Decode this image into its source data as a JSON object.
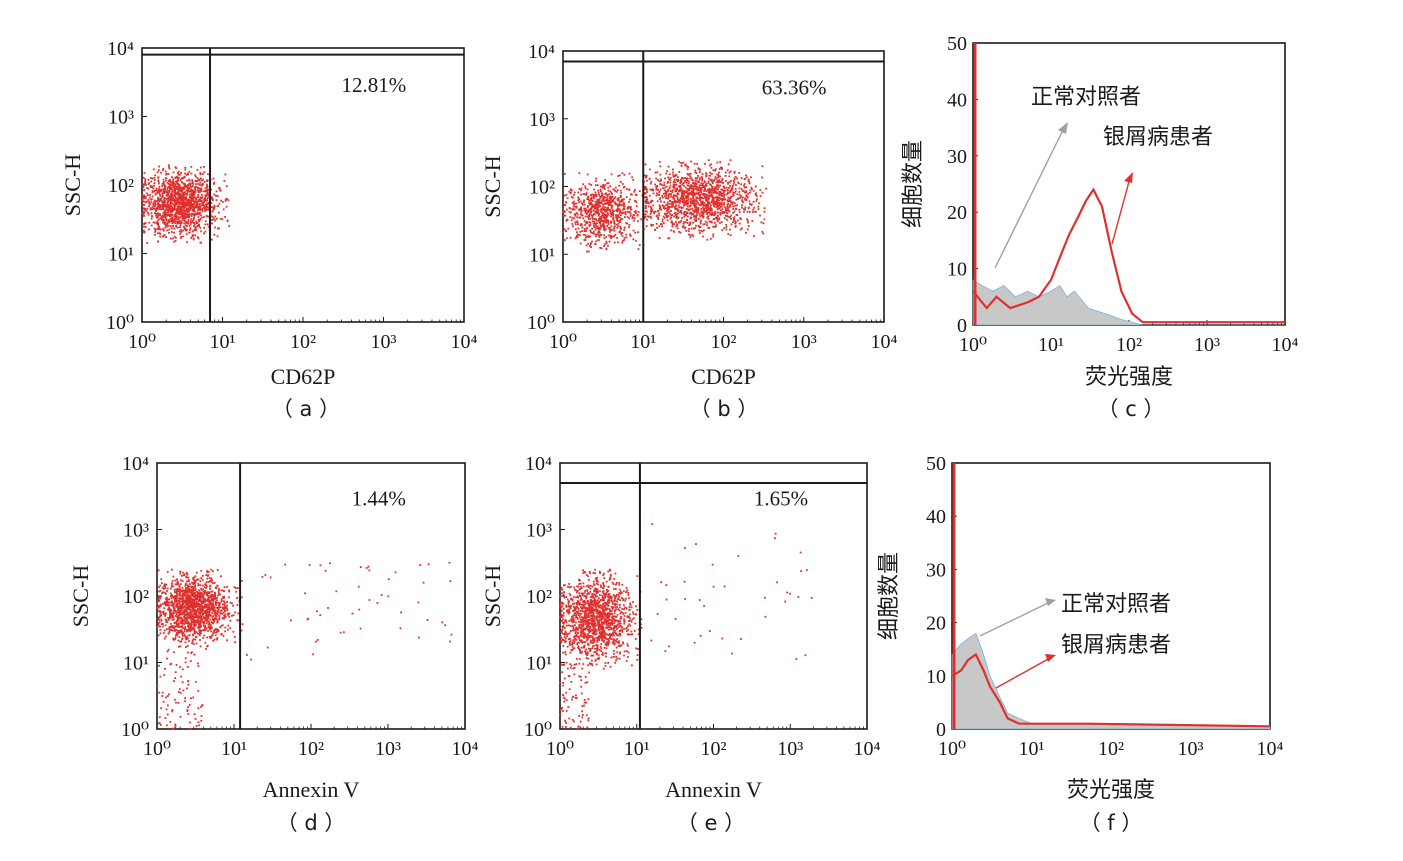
{
  "colors": {
    "scatter": "#e0302e",
    "treated": "#e0302e",
    "control": "#c8c8c8",
    "control_edge": "#5aa6d6",
    "axis": "#1a1a1a"
  },
  "chart_data": [
    {
      "type": "scatter",
      "panel_label": "（ a ）",
      "xlabel": "CD62P",
      "ylabel": "SSC-H",
      "x_scale": "log",
      "y_scale": "log",
      "xlim": [
        1,
        10000
      ],
      "ylim": [
        1,
        10000
      ],
      "tick_labels": [
        "10⁰",
        "10¹",
        "10²",
        "10³",
        "10⁴"
      ],
      "gate_x": 7,
      "gate_y": 8000,
      "percent_label": "12.81%",
      "clusters": [
        {
          "x_log_range": [
            0,
            0.95
          ],
          "y_log_range": [
            1.25,
            2.2
          ],
          "count": 1400
        }
      ]
    },
    {
      "type": "scatter",
      "panel_label": "（ b ）",
      "xlabel": "CD62P",
      "ylabel": "SSC-H",
      "x_scale": "log",
      "y_scale": "log",
      "xlim": [
        1,
        10000
      ],
      "ylim": [
        1,
        10000
      ],
      "tick_labels": [
        "10⁰",
        "10¹",
        "10²",
        "10³",
        "10⁴"
      ],
      "gate_x": 10,
      "gate_y": 7000,
      "percent_label": "63.36%",
      "clusters": [
        {
          "x_log_range": [
            0,
            1.0
          ],
          "y_log_range": [
            1.1,
            2.1
          ],
          "count": 800
        },
        {
          "x_log_range": [
            1.0,
            2.4
          ],
          "y_log_range": [
            1.3,
            2.3
          ],
          "count": 1400
        }
      ]
    },
    {
      "type": "area",
      "panel_label": "（ c ）",
      "xlabel": "荧光强度",
      "ylabel": "细胞数量",
      "x_scale": "log",
      "xlim": [
        1,
        10000
      ],
      "ylim": [
        0,
        50
      ],
      "y_ticks": [
        0,
        10,
        20,
        30,
        40,
        50
      ],
      "tick_labels": [
        "10⁰",
        "10¹",
        "10²",
        "10³",
        "10⁴"
      ],
      "series": [
        {
          "name": "正常对照者",
          "x": [
            1,
            1.3,
            1.8,
            2.5,
            3.5,
            5,
            7,
            10,
            13,
            16,
            20,
            30,
            50,
            80,
            150,
            10000
          ],
          "y": [
            8,
            7,
            6,
            7,
            5,
            6,
            5,
            6,
            7,
            5,
            6,
            3,
            2,
            1,
            0,
            0
          ]
        },
        {
          "name": "银屑病患者",
          "x": [
            1,
            1.5,
            2,
            3,
            5,
            7,
            10,
            13,
            17,
            22,
            28,
            35,
            45,
            60,
            80,
            110,
            150,
            200,
            10000
          ],
          "y": [
            6,
            3,
            5,
            3,
            4,
            5,
            8,
            12,
            16,
            19,
            22,
            24,
            21,
            13,
            6,
            2,
            0.5,
            0.5,
            0.5
          ]
        }
      ]
    },
    {
      "type": "scatter",
      "panel_label": "（ d ）",
      "xlabel": "Annexin V",
      "ylabel": "SSC-H",
      "x_scale": "log",
      "y_scale": "log",
      "xlim": [
        1,
        10000
      ],
      "ylim": [
        1,
        10000
      ],
      "tick_labels": [
        "10⁰",
        "10¹",
        "10²",
        "10³",
        "10⁴"
      ],
      "gate_x": 12,
      "percent_label": "1.44%",
      "clusters": [
        {
          "x_log_range": [
            0,
            0.95
          ],
          "y_log_range": [
            1.3,
            2.3
          ],
          "count": 1500
        },
        {
          "x_log_range": [
            0,
            0.6
          ],
          "y_log_range": [
            0,
            1.2
          ],
          "count": 90
        },
        {
          "x_log_range": [
            1.1,
            3.9
          ],
          "y_log_range": [
            1.0,
            2.6
          ],
          "count": 55
        }
      ]
    },
    {
      "type": "scatter",
      "panel_label": "（ e ）",
      "xlabel": "Annexin V",
      "ylabel": "SSC-H",
      "x_scale": "log",
      "y_scale": "log",
      "xlim": [
        1,
        10000
      ],
      "ylim": [
        1,
        10000
      ],
      "tick_labels": [
        "10⁰",
        "10¹",
        "10²",
        "10³",
        "10⁴"
      ],
      "gate_x": 11,
      "gate_y": 5000,
      "percent_label": "1.65%",
      "clusters": [
        {
          "x_log_range": [
            0,
            0.95
          ],
          "y_log_range": [
            1.0,
            2.3
          ],
          "count": 1400
        },
        {
          "x_log_range": [
            0,
            0.4
          ],
          "y_log_range": [
            0,
            1.0
          ],
          "count": 80
        },
        {
          "x_log_range": [
            1.0,
            3.3
          ],
          "y_log_range": [
            1.0,
            3.1
          ],
          "count": 40
        }
      ]
    },
    {
      "type": "area",
      "panel_label": "（ f ）",
      "xlabel": "荧光强度",
      "ylabel": "细胞数量",
      "x_scale": "log",
      "xlim": [
        1,
        10000
      ],
      "ylim": [
        0,
        50
      ],
      "y_ticks": [
        0,
        10,
        20,
        30,
        40,
        50
      ],
      "tick_labels": [
        "10⁰",
        "10¹",
        "10²",
        "10³",
        "10⁴"
      ],
      "series": [
        {
          "name": "正常对照者",
          "x": [
            1,
            1.3,
            1.6,
            2,
            2.5,
            3,
            4,
            5,
            7,
            10,
            20,
            50,
            10000
          ],
          "y": [
            14,
            16,
            17,
            18,
            14,
            10,
            6,
            3,
            2,
            1,
            1,
            1,
            0.5
          ]
        },
        {
          "name": "银屑病患者",
          "x": [
            1,
            1.3,
            1.6,
            2,
            2.5,
            3,
            4,
            5,
            7,
            10,
            20,
            50,
            10000
          ],
          "y": [
            10,
            11,
            13,
            14,
            11,
            8,
            5,
            2,
            1,
            1,
            1,
            1,
            0.5
          ]
        }
      ]
    }
  ]
}
